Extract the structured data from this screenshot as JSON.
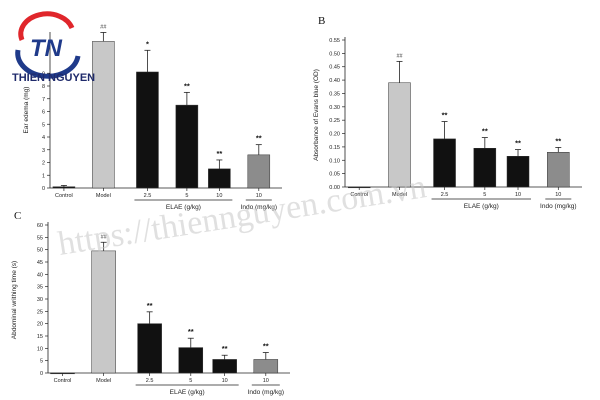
{
  "logo": {
    "initials": "TN",
    "name": "THIEN NGUYEN",
    "colors": {
      "ring_red": "#e0262b",
      "ring_blue": "#1f3a8a",
      "text_blue": "#1f2a6b"
    }
  },
  "watermark": {
    "text": "https://thiennguyen.com.vn"
  },
  "colors": {
    "model_bar": "#c8c8c8",
    "elae_bar": "#111111",
    "indo_bar": "#8c8c8c"
  },
  "chart_data": [
    {
      "panel": "",
      "type": "bar",
      "categories": [
        "Control",
        "Model",
        "2.5",
        "5",
        "10",
        "10"
      ],
      "values": [
        0.1,
        11.5,
        9.1,
        6.5,
        1.5,
        2.6
      ],
      "errors": [
        0.1,
        0.7,
        1.7,
        1.0,
        0.7,
        0.8
      ],
      "significance": [
        "",
        "##",
        "*",
        "**",
        "**",
        "**"
      ],
      "ylabel": "Ear edema (mg)",
      "ylim": [
        0,
        12
      ],
      "yticks": [
        0,
        1,
        2,
        3,
        4,
        5,
        6,
        7,
        8,
        9
      ],
      "groups": [
        {
          "label": "ELAE (g/kg)",
          "from": 2,
          "to": 4
        },
        {
          "label": "Indo (mg/kg)",
          "from": 5,
          "to": 5
        }
      ]
    },
    {
      "panel": "B",
      "type": "bar",
      "categories": [
        "Control",
        "Model",
        "2.5",
        "5",
        "10",
        "10"
      ],
      "values": [
        0.0,
        0.39,
        0.18,
        0.145,
        0.115,
        0.13
      ],
      "errors": [
        0.0,
        0.08,
        0.065,
        0.04,
        0.025,
        0.018
      ],
      "significance": [
        "",
        "##",
        "**",
        "**",
        "**",
        "**"
      ],
      "ylabel": "Absorbance of Evans blue (OD)",
      "ylim": [
        0,
        0.55
      ],
      "yticks": [
        0.0,
        0.05,
        0.1,
        0.15,
        0.2,
        0.25,
        0.3,
        0.35,
        0.4,
        0.45,
        0.5,
        0.55
      ],
      "yformat": 2,
      "groups": [
        {
          "label": "ELAE (g/kg)",
          "from": 2,
          "to": 4
        },
        {
          "label": "Indo (mg/kg)",
          "from": 5,
          "to": 5
        }
      ]
    },
    {
      "panel": "C",
      "type": "bar",
      "categories": [
        "Control",
        "Model",
        "2.5",
        "5",
        "10",
        "10"
      ],
      "values": [
        0,
        49.5,
        20,
        10.3,
        5.5,
        5.5
      ],
      "errors": [
        0,
        3.5,
        4.8,
        3.8,
        1.7,
        2.8
      ],
      "significance": [
        "",
        "##",
        "**",
        "**",
        "**",
        "**"
      ],
      "ylabel": "Abdominal writhing time (s)",
      "ylim": [
        0,
        60
      ],
      "yticks": [
        0,
        5,
        10,
        15,
        20,
        25,
        30,
        35,
        40,
        45,
        50,
        55,
        60
      ],
      "groups": [
        {
          "label": "ELAE (g/kg)",
          "from": 2,
          "to": 4
        },
        {
          "label": "Indo (mg/kg)",
          "from": 5,
          "to": 5
        }
      ]
    }
  ]
}
